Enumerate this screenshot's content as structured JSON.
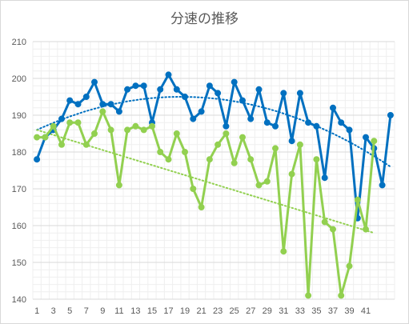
{
  "chart_data": {
    "type": "line",
    "title": "分速の推移",
    "xlabel": "",
    "ylabel": "",
    "x_tick_labels": [
      "1",
      "3",
      "5",
      "7",
      "9",
      "11",
      "13",
      "15",
      "17",
      "19",
      "21",
      "23",
      "25",
      "27",
      "29",
      "31",
      "33",
      "35",
      "37",
      "39",
      "41"
    ],
    "xlim": [
      1,
      44
    ],
    "ylim": [
      140,
      210
    ],
    "y_ticks": [
      140,
      150,
      160,
      170,
      180,
      190,
      200,
      210
    ],
    "grid": "major and minor",
    "legend": "none",
    "series": [
      {
        "color": "#0070c0",
        "marker": "circle",
        "x": [
          1,
          2,
          3,
          4,
          5,
          6,
          7,
          8,
          9,
          10,
          11,
          12,
          13,
          14,
          15,
          16,
          17,
          18,
          19,
          20,
          21,
          22,
          23,
          24,
          25,
          26,
          27,
          28,
          29,
          30,
          31,
          32,
          33,
          34,
          35,
          36,
          37,
          38,
          39,
          40,
          41,
          42,
          43,
          44
        ],
        "values": [
          178,
          184,
          186,
          189,
          194,
          193,
          195,
          199,
          193,
          193,
          191,
          197,
          198,
          198,
          188,
          197,
          201,
          197,
          195,
          189,
          191,
          198,
          196,
          187,
          199,
          194,
          189,
          197,
          188,
          187,
          196,
          183,
          196,
          188,
          187,
          173,
          192,
          188,
          186,
          162,
          184,
          181,
          171,
          190
        ],
        "trendline": {
          "type": "polynomial",
          "style": "dotted",
          "from": [
            1,
            186
          ],
          "peak": [
            18,
            195
          ],
          "to": [
            44,
            176
          ]
        }
      },
      {
        "color": "#92d050",
        "marker": "circle",
        "x": [
          1,
          2,
          3,
          4,
          5,
          6,
          7,
          8,
          9,
          10,
          11,
          12,
          13,
          14,
          15,
          16,
          17,
          18,
          19,
          20,
          21,
          22,
          23,
          24,
          25,
          26,
          27,
          28,
          29,
          30,
          31,
          32,
          33,
          34,
          35,
          36,
          37,
          38,
          39,
          40,
          41,
          42
        ],
        "values": [
          184,
          184,
          187,
          182,
          188,
          188,
          182,
          185,
          191,
          186,
          171,
          186,
          187,
          186,
          187,
          180,
          178,
          185,
          180,
          170,
          165,
          178,
          182,
          185,
          177,
          184,
          178,
          171,
          172,
          181,
          153,
          174,
          182,
          141,
          178,
          161,
          159,
          141,
          149,
          167,
          159,
          183
        ],
        "trendline": {
          "type": "linear",
          "style": "dotted",
          "from": [
            1,
            186
          ],
          "to": [
            42,
            158
          ]
        }
      }
    ]
  }
}
